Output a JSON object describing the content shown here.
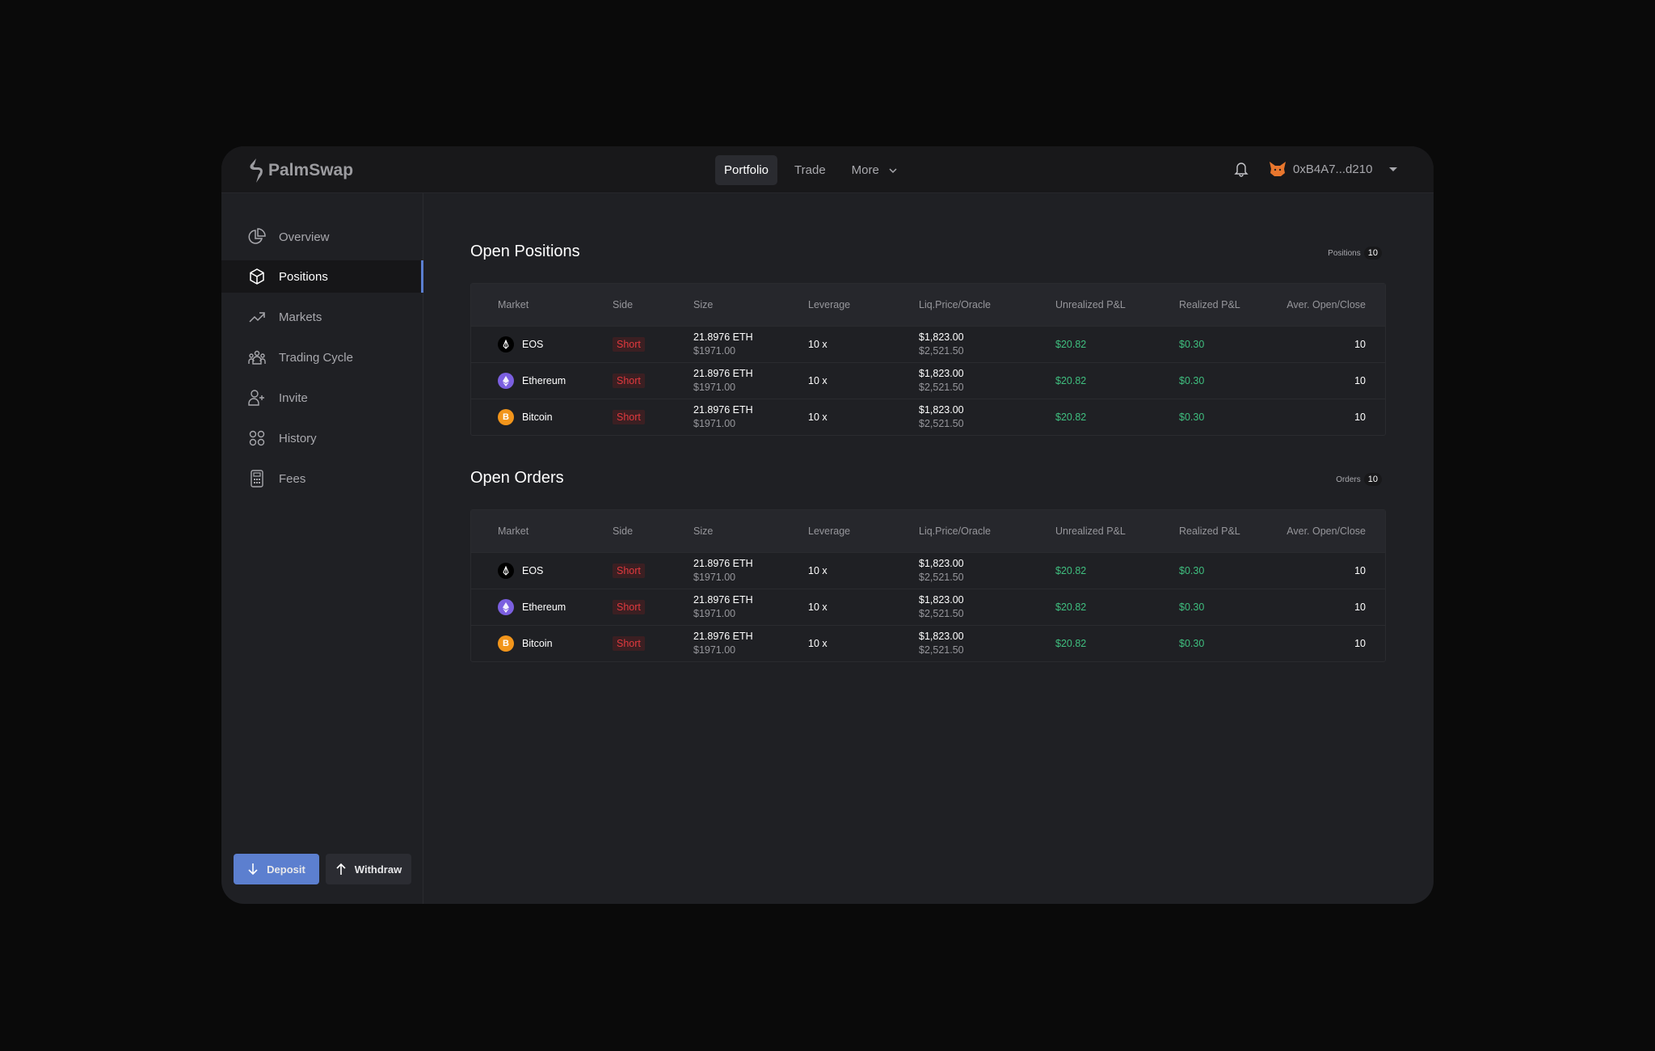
{
  "app": {
    "name": "PalmSwap"
  },
  "header": {
    "nav": [
      {
        "label": "Portfolio",
        "active": true
      },
      {
        "label": "Trade"
      },
      {
        "label": "More"
      }
    ],
    "account": "0xB4A7...d210"
  },
  "sidebar": {
    "items": [
      {
        "label": "Overview",
        "icon": "pie-chart-icon"
      },
      {
        "label": "Positions",
        "icon": "cube-icon",
        "active": true
      },
      {
        "label": "Markets",
        "icon": "trending-up-icon"
      },
      {
        "label": "Trading Cycle",
        "icon": "users-group-icon"
      },
      {
        "label": "Invite",
        "icon": "user-plus-icon"
      },
      {
        "label": "History",
        "icon": "grid-icon"
      },
      {
        "label": "Fees",
        "icon": "calculator-icon"
      }
    ],
    "deposit": "Deposit",
    "withdraw": "Withdraw"
  },
  "columns": [
    "Market",
    "Side",
    "Size",
    "Leverage",
    "Liq.Price/Oracle",
    "Unrealized P&L",
    "Realized P&L",
    "Aver. Open/Close"
  ],
  "positions": {
    "title": "Open Positions",
    "count_label": "Positions",
    "count": "10",
    "rows": [
      {
        "market": "EOS",
        "coin": "eos",
        "side": "Short",
        "size": "21.8976 ETH",
        "size_usd": "$1971.00",
        "leverage": "10 x",
        "liq": "$1,823.00",
        "oracle": "$2,521.50",
        "upnl": "$20.82",
        "rpnl": "$0.30",
        "aver": "10"
      },
      {
        "market": "Ethereum",
        "coin": "eth",
        "side": "Short",
        "size": "21.8976 ETH",
        "size_usd": "$1971.00",
        "leverage": "10 x",
        "liq": "$1,823.00",
        "oracle": "$2,521.50",
        "upnl": "$20.82",
        "rpnl": "$0.30",
        "aver": "10"
      },
      {
        "market": "Bitcoin",
        "coin": "btc",
        "side": "Short",
        "size": "21.8976 ETH",
        "size_usd": "$1971.00",
        "leverage": "10 x",
        "liq": "$1,823.00",
        "oracle": "$2,521.50",
        "upnl": "$20.82",
        "rpnl": "$0.30",
        "aver": "10"
      }
    ]
  },
  "orders": {
    "title": "Open Orders",
    "count_label": "Orders",
    "count": "10",
    "rows": [
      {
        "market": "EOS",
        "coin": "eos",
        "side": "Short",
        "size": "21.8976 ETH",
        "size_usd": "$1971.00",
        "leverage": "10 x",
        "liq": "$1,823.00",
        "oracle": "$2,521.50",
        "upnl": "$20.82",
        "rpnl": "$0.30",
        "aver": "10"
      },
      {
        "market": "Ethereum",
        "coin": "eth",
        "side": "Short",
        "size": "21.8976 ETH",
        "size_usd": "$1971.00",
        "leverage": "10 x",
        "liq": "$1,823.00",
        "oracle": "$2,521.50",
        "upnl": "$20.82",
        "rpnl": "$0.30",
        "aver": "10"
      },
      {
        "market": "Bitcoin",
        "coin": "btc",
        "side": "Short",
        "size": "21.8976 ETH",
        "size_usd": "$1971.00",
        "leverage": "10 x",
        "liq": "$1,823.00",
        "oracle": "$2,521.50",
        "upnl": "$20.82",
        "rpnl": "$0.30",
        "aver": "10"
      }
    ]
  }
}
